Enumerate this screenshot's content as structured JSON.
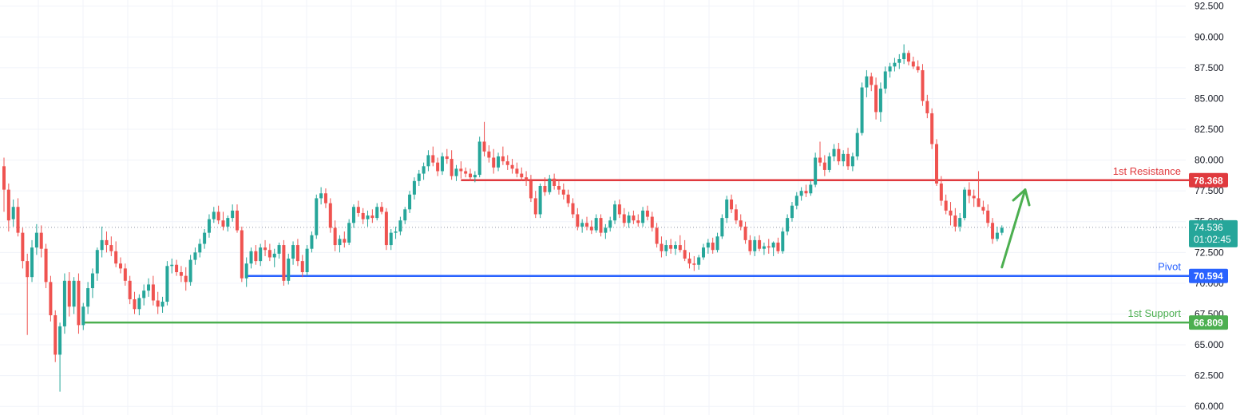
{
  "chart_data": {
    "type": "candlestick",
    "y_axis": {
      "position": "right",
      "ylim": [
        59.3,
        93.0
      ],
      "ticks": [
        "92.500",
        "90.000",
        "87.500",
        "85.000",
        "82.500",
        "80.000",
        "77.500",
        "75.000",
        "72.500",
        "70.000",
        "67.500",
        "65.000",
        "62.500",
        "60.000"
      ]
    },
    "grid": true,
    "last_price": {
      "value": 74.536,
      "label": "74.536",
      "countdown": "01:02:45",
      "color": "#26a69a"
    },
    "levels": [
      {
        "name": "1st Resistance",
        "value": 78.368,
        "label": "78.368",
        "color": "#e03a3e"
      },
      {
        "name": "Pivot",
        "value": 70.594,
        "label": "70.594",
        "color": "#2962ff"
      },
      {
        "name": "1st Support",
        "value": 66.809,
        "label": "66.809",
        "color": "#4caf50"
      }
    ],
    "annotation": {
      "type": "arrow",
      "direction": "up",
      "color": "#4caf50",
      "from": {
        "bar": 214,
        "price": 71.3
      },
      "to": {
        "bar": 219,
        "price": 77.6
      }
    },
    "colors": {
      "up": "#26a69a",
      "down": "#ef5350"
    },
    "candles": [
      [
        79.5,
        80.2,
        75.8,
        77.6
      ],
      [
        77.6,
        78.1,
        74.2,
        75.1
      ],
      [
        75.2,
        76.8,
        74.6,
        76.2
      ],
      [
        76.2,
        76.9,
        73.8,
        74.1
      ],
      [
        74.1,
        74.5,
        71.2,
        71.8
      ],
      [
        71.8,
        72.4,
        65.8,
        70.5
      ],
      [
        70.5,
        73.5,
        70.1,
        72.9
      ],
      [
        72.9,
        74.8,
        72.3,
        74.1
      ],
      [
        74.1,
        74.7,
        72.1,
        72.8
      ],
      [
        72.8,
        73.2,
        69.6,
        70.1
      ],
      [
        70.1,
        70.6,
        66.9,
        67.4
      ],
      [
        67.4,
        67.8,
        63.6,
        64.2
      ],
      [
        64.2,
        66.8,
        61.2,
        66.5
      ],
      [
        66.5,
        70.8,
        65.9,
        70.2
      ],
      [
        70.2,
        70.9,
        67.3,
        68.1
      ],
      [
        68.1,
        70.5,
        67.5,
        70.2
      ],
      [
        70.2,
        70.8,
        65.9,
        66.6
      ],
      [
        66.6,
        68.4,
        66.2,
        68.1
      ],
      [
        68.1,
        70.1,
        67.5,
        69.6
      ],
      [
        69.6,
        71.2,
        68.8,
        70.8
      ],
      [
        70.8,
        72.9,
        70.2,
        72.7
      ],
      [
        72.7,
        74.6,
        72.1,
        73.5
      ],
      [
        73.5,
        74.2,
        72.5,
        73.1
      ],
      [
        73.1,
        73.8,
        72.2,
        72.6
      ],
      [
        72.6,
        73.4,
        71.3,
        71.6
      ],
      [
        71.6,
        72.1,
        70.8,
        71.2
      ],
      [
        71.2,
        71.6,
        69.8,
        70.2
      ],
      [
        70.2,
        70.6,
        68.3,
        68.7
      ],
      [
        68.7,
        69.3,
        67.5,
        67.9
      ],
      [
        67.9,
        69.1,
        67.4,
        68.8
      ],
      [
        68.8,
        69.9,
        68.2,
        69.4
      ],
      [
        69.4,
        70.4,
        68.9,
        69.9
      ],
      [
        69.9,
        70.6,
        68.2,
        68.6
      ],
      [
        68.6,
        69.3,
        67.5,
        68.1
      ],
      [
        68.1,
        68.9,
        67.6,
        68.5
      ],
      [
        68.5,
        71.8,
        68.2,
        71.4
      ],
      [
        71.4,
        72.0,
        70.8,
        71.5
      ],
      [
        71.5,
        71.9,
        70.6,
        70.9
      ],
      [
        70.9,
        71.4,
        70.1,
        70.6
      ],
      [
        70.6,
        71.3,
        69.4,
        70.1
      ],
      [
        70.1,
        72.3,
        69.8,
        71.9
      ],
      [
        71.9,
        72.9,
        71.5,
        72.5
      ],
      [
        72.5,
        73.6,
        72.1,
        73.2
      ],
      [
        73.2,
        74.4,
        72.8,
        74.1
      ],
      [
        74.1,
        75.6,
        73.7,
        75.2
      ],
      [
        75.2,
        76.2,
        74.9,
        75.8
      ],
      [
        75.8,
        76.3,
        74.8,
        75.1
      ],
      [
        75.1,
        75.8,
        74.3,
        74.6
      ],
      [
        74.6,
        75.5,
        74.2,
        75.3
      ],
      [
        75.3,
        76.4,
        75.0,
        75.9
      ],
      [
        75.9,
        76.4,
        74.1,
        74.3
      ],
      [
        74.3,
        74.6,
        70.1,
        70.4
      ],
      [
        70.4,
        72.1,
        69.7,
        71.6
      ],
      [
        71.6,
        72.9,
        71.2,
        72.6
      ],
      [
        72.6,
        73.1,
        71.5,
        71.8
      ],
      [
        71.8,
        73.2,
        71.4,
        72.9
      ],
      [
        72.9,
        73.5,
        72.2,
        72.7
      ],
      [
        72.7,
        73.2,
        71.8,
        72.1
      ],
      [
        72.1,
        72.8,
        71.3,
        72.4
      ],
      [
        72.4,
        73.3,
        72.0,
        73.1
      ],
      [
        73.1,
        73.5,
        69.8,
        70.2
      ],
      [
        70.2,
        72.4,
        69.9,
        72.0
      ],
      [
        72.0,
        73.4,
        71.5,
        73.1
      ],
      [
        73.1,
        73.6,
        71.4,
        71.8
      ],
      [
        71.8,
        72.3,
        70.5,
        70.9
      ],
      [
        70.9,
        73.1,
        70.6,
        72.8
      ],
      [
        72.8,
        74.2,
        72.5,
        73.9
      ],
      [
        73.9,
        77.2,
        73.6,
        76.9
      ],
      [
        76.9,
        77.8,
        76.4,
        77.3
      ],
      [
        77.3,
        77.7,
        76.1,
        76.5
      ],
      [
        76.5,
        76.9,
        74.1,
        74.5
      ],
      [
        74.5,
        75.1,
        72.6,
        73.1
      ],
      [
        73.1,
        73.9,
        72.5,
        73.6
      ],
      [
        73.6,
        74.2,
        72.9,
        73.3
      ],
      [
        73.3,
        75.2,
        73.1,
        74.9
      ],
      [
        74.9,
        76.4,
        74.5,
        76.2
      ],
      [
        76.2,
        76.7,
        75.4,
        75.7
      ],
      [
        75.7,
        76.1,
        74.8,
        75.2
      ],
      [
        75.2,
        75.9,
        74.6,
        75.5
      ],
      [
        75.5,
        76.0,
        74.9,
        75.3
      ],
      [
        75.3,
        76.5,
        75.1,
        76.2
      ],
      [
        76.2,
        76.6,
        75.6,
        75.8
      ],
      [
        75.8,
        76.1,
        72.7,
        73.1
      ],
      [
        73.1,
        74.4,
        72.7,
        74.1
      ],
      [
        74.1,
        74.6,
        73.6,
        74.2
      ],
      [
        74.2,
        75.4,
        73.9,
        75.1
      ],
      [
        75.1,
        76.2,
        74.8,
        76.0
      ],
      [
        76.0,
        77.5,
        75.7,
        77.2
      ],
      [
        77.2,
        78.6,
        76.8,
        78.3
      ],
      [
        78.3,
        79.2,
        77.9,
        78.9
      ],
      [
        78.9,
        79.8,
        78.4,
        79.5
      ],
      [
        79.5,
        80.8,
        79.1,
        80.4
      ],
      [
        80.4,
        81.1,
        79.5,
        79.8
      ],
      [
        79.8,
        80.2,
        78.7,
        79.1
      ],
      [
        79.1,
        80.6,
        78.8,
        80.3
      ],
      [
        80.3,
        80.9,
        79.7,
        80.1
      ],
      [
        80.1,
        80.8,
        78.4,
        78.7
      ],
      [
        78.7,
        79.6,
        78.3,
        79.3
      ],
      [
        79.3,
        79.9,
        78.5,
        79.1
      ],
      [
        79.1,
        79.4,
        78.6,
        78.9
      ],
      [
        78.9,
        79.3,
        78.3,
        78.6
      ],
      [
        78.6,
        79.1,
        78.2,
        78.8
      ],
      [
        78.8,
        81.9,
        78.6,
        81.5
      ],
      [
        81.5,
        83.1,
        80.3,
        80.7
      ],
      [
        80.7,
        81.2,
        79.8,
        80.2
      ],
      [
        80.2,
        80.9,
        78.9,
        79.4
      ],
      [
        79.4,
        80.6,
        79.1,
        80.3
      ],
      [
        80.3,
        81.1,
        79.6,
        79.9
      ],
      [
        79.9,
        80.4,
        79.2,
        79.6
      ],
      [
        79.6,
        80.1,
        78.9,
        79.3
      ],
      [
        79.3,
        79.8,
        78.6,
        78.9
      ],
      [
        78.9,
        79.4,
        78.3,
        78.6
      ],
      [
        78.6,
        79.1,
        77.9,
        78.3
      ],
      [
        78.3,
        78.8,
        76.6,
        76.9
      ],
      [
        76.9,
        77.5,
        75.3,
        75.6
      ],
      [
        75.6,
        78.1,
        75.3,
        77.9
      ],
      [
        77.9,
        78.6,
        77.1,
        77.4
      ],
      [
        77.4,
        78.8,
        77.2,
        78.5
      ],
      [
        78.5,
        78.9,
        77.6,
        77.9
      ],
      [
        77.9,
        78.4,
        77.2,
        77.6
      ],
      [
        77.6,
        78.1,
        76.8,
        77.2
      ],
      [
        77.2,
        77.6,
        76.2,
        76.5
      ],
      [
        76.5,
        76.9,
        75.3,
        75.6
      ],
      [
        75.6,
        76.1,
        74.3,
        74.6
      ],
      [
        74.6,
        75.2,
        74.1,
        74.9
      ],
      [
        74.9,
        75.4,
        74.3,
        74.6
      ],
      [
        74.6,
        75.1,
        74.0,
        74.3
      ],
      [
        74.3,
        75.6,
        74.1,
        75.3
      ],
      [
        75.3,
        75.6,
        73.8,
        74.1
      ],
      [
        74.1,
        74.8,
        73.6,
        74.5
      ],
      [
        74.5,
        75.4,
        74.2,
        75.1
      ],
      [
        75.1,
        76.7,
        74.8,
        76.4
      ],
      [
        76.4,
        76.8,
        75.3,
        75.6
      ],
      [
        75.6,
        76.1,
        74.6,
        74.9
      ],
      [
        74.9,
        75.8,
        74.5,
        75.5
      ],
      [
        75.5,
        75.9,
        74.8,
        75.1
      ],
      [
        75.1,
        75.6,
        74.6,
        74.9
      ],
      [
        74.9,
        76.2,
        74.6,
        75.9
      ],
      [
        75.9,
        76.3,
        75.1,
        75.4
      ],
      [
        75.4,
        75.8,
        74.2,
        74.5
      ],
      [
        74.5,
        74.9,
        72.9,
        73.2
      ],
      [
        73.2,
        73.8,
        72.1,
        72.6
      ],
      [
        72.6,
        73.5,
        72.2,
        73.1
      ],
      [
        73.1,
        73.6,
        72.4,
        72.8
      ],
      [
        72.8,
        73.4,
        72.3,
        73.1
      ],
      [
        73.1,
        73.9,
        72.5,
        72.7
      ],
      [
        72.7,
        73.5,
        71.8,
        72.0
      ],
      [
        72.0,
        72.5,
        71.2,
        71.6
      ],
      [
        71.6,
        72.2,
        71.0,
        71.5
      ],
      [
        71.5,
        72.3,
        71.1,
        72.1
      ],
      [
        72.1,
        73.2,
        71.9,
        72.9
      ],
      [
        72.9,
        73.6,
        72.4,
        73.3
      ],
      [
        73.3,
        73.7,
        72.4,
        72.7
      ],
      [
        72.7,
        74.1,
        72.5,
        73.8
      ],
      [
        73.8,
        75.6,
        73.6,
        75.3
      ],
      [
        75.3,
        77.1,
        74.9,
        76.8
      ],
      [
        76.8,
        77.2,
        75.7,
        76.0
      ],
      [
        76.0,
        76.4,
        74.8,
        75.1
      ],
      [
        75.1,
        75.6,
        74.3,
        74.6
      ],
      [
        74.6,
        75.0,
        73.2,
        73.5
      ],
      [
        73.5,
        73.9,
        72.3,
        72.6
      ],
      [
        72.6,
        73.8,
        72.2,
        73.5
      ],
      [
        73.5,
        73.9,
        72.6,
        72.8
      ],
      [
        72.8,
        73.3,
        72.3,
        73.0
      ],
      [
        73.0,
        73.6,
        72.4,
        72.9
      ],
      [
        72.9,
        73.4,
        72.2,
        73.3
      ],
      [
        73.3,
        73.7,
        72.4,
        72.6
      ],
      [
        72.6,
        74.5,
        72.4,
        74.2
      ],
      [
        74.2,
        75.6,
        73.9,
        75.3
      ],
      [
        75.3,
        76.6,
        75.0,
        76.3
      ],
      [
        76.3,
        77.4,
        76.0,
        77.1
      ],
      [
        77.1,
        77.8,
        76.7,
        77.5
      ],
      [
        77.5,
        78.0,
        77.0,
        77.3
      ],
      [
        77.3,
        78.3,
        77.1,
        78.0
      ],
      [
        78.0,
        80.6,
        77.8,
        80.2
      ],
      [
        80.2,
        81.5,
        79.5,
        79.8
      ],
      [
        79.8,
        80.4,
        78.7,
        79.2
      ],
      [
        79.2,
        80.6,
        79.0,
        80.3
      ],
      [
        80.3,
        81.3,
        79.9,
        80.9
      ],
      [
        80.9,
        81.4,
        79.6,
        79.9
      ],
      [
        79.9,
        80.8,
        79.5,
        80.5
      ],
      [
        80.5,
        81.0,
        79.2,
        79.5
      ],
      [
        79.5,
        80.6,
        79.1,
        80.3
      ],
      [
        80.3,
        82.6,
        80.0,
        82.2
      ],
      [
        82.2,
        86.3,
        82.0,
        85.9
      ],
      [
        85.9,
        87.3,
        85.1,
        86.8
      ],
      [
        86.8,
        87.1,
        85.6,
        86.1
      ],
      [
        86.1,
        86.7,
        83.3,
        83.9
      ],
      [
        83.9,
        86.3,
        83.1,
        85.8
      ],
      [
        85.8,
        87.6,
        85.4,
        87.2
      ],
      [
        87.2,
        87.9,
        86.7,
        87.6
      ],
      [
        87.6,
        88.3,
        87.2,
        87.9
      ],
      [
        87.9,
        88.6,
        87.4,
        88.2
      ],
      [
        88.2,
        89.4,
        87.8,
        88.7
      ],
      [
        88.7,
        88.9,
        87.7,
        88.0
      ],
      [
        88.0,
        88.4,
        87.4,
        87.6
      ],
      [
        87.6,
        88.1,
        87.1,
        87.3
      ],
      [
        87.3,
        87.8,
        84.4,
        84.8
      ],
      [
        84.8,
        85.3,
        83.4,
        83.8
      ],
      [
        83.8,
        84.2,
        80.9,
        81.3
      ],
      [
        81.3,
        81.7,
        77.9,
        78.1
      ],
      [
        78.1,
        78.7,
        76.3,
        76.7
      ],
      [
        76.7,
        77.2,
        75.6,
        75.9
      ],
      [
        75.9,
        76.6,
        74.7,
        75.5
      ],
      [
        75.5,
        76.1,
        74.2,
        74.6
      ],
      [
        74.6,
        75.7,
        74.2,
        75.3
      ],
      [
        75.3,
        77.8,
        75.1,
        77.6
      ],
      [
        77.6,
        78.2,
        76.5,
        77.1
      ],
      [
        77.1,
        77.6,
        76.2,
        76.9
      ],
      [
        76.9,
        79.1,
        76.4,
        76.2
      ],
      [
        76.2,
        76.7,
        75.6,
        75.9
      ],
      [
        75.9,
        76.4,
        74.6,
        74.9
      ],
      [
        74.9,
        75.3,
        73.2,
        73.6
      ],
      [
        73.6,
        74.6,
        73.4,
        74.1
      ],
      [
        74.1,
        74.7,
        73.9,
        74.5
      ]
    ]
  }
}
